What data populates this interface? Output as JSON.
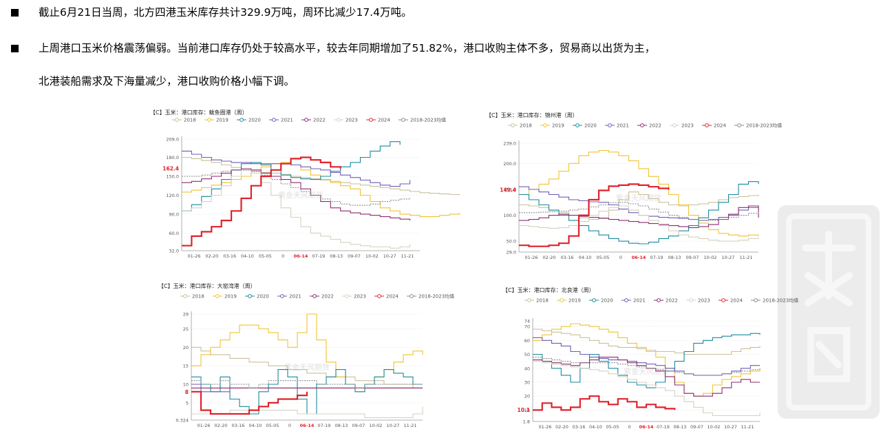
{
  "bullets": [
    {
      "text": "截止6月21日当周，北方四港玉米库存共计329.9万吨，周环比减少17.4万吨。"
    },
    {
      "text": "上周港口玉米价格震荡偏弱。当前港口库存仍处于较高水平，较去年同期增加了51.82%，港口收购主体不多，贸易商以出货为主，"
    },
    {
      "text": "北港装船需求及下海量减少，港口收购价格小幅下调。"
    }
  ],
  "watermark_text": "紫金天风期货",
  "series_legend": [
    {
      "name": "2018",
      "color": "#c9bf9a"
    },
    {
      "name": "2019",
      "color": "#f2c12e"
    },
    {
      "name": "2020",
      "color": "#17889a"
    },
    {
      "name": "2021",
      "color": "#6b5bb5"
    },
    {
      "name": "2022",
      "color": "#8b2a6a"
    },
    {
      "name": "2023",
      "color": "#d6d0c0"
    },
    {
      "name": "2024",
      "color": "#e0202a"
    },
    {
      "name": "2018-2023均值",
      "color": "#8a8a8a"
    }
  ],
  "x_ticks": [
    "01-26",
    "02-20",
    "03-16",
    "04-10",
    "05-05",
    "0",
    "06-14",
    "07-19",
    "08-13",
    "09-07",
    "10-02",
    "10-27",
    "11-21"
  ],
  "chart_data": [
    {
      "type": "line",
      "title": "【C】玉米：港口库存：鲅鱼圈港（周）",
      "y_ticks": [
        "209.0",
        "180.0",
        "150.0",
        "120.0",
        "90.0",
        "60.0",
        "32.0"
      ],
      "ylim": [
        32,
        209
      ],
      "last_label": "162.4",
      "last_value": 162.4,
      "series": [
        {
          "name": "2018",
          "values": [
            180,
            178,
            175,
            172,
            168,
            164,
            160,
            158,
            156,
            155,
            153,
            150,
            148,
            146,
            144,
            142,
            140,
            138,
            136,
            134,
            132,
            130,
            128,
            126,
            124,
            123,
            122,
            121,
            120
          ]
        },
        {
          "name": "2019",
          "values": [
            125,
            128,
            132,
            136,
            140,
            145,
            150,
            158,
            165,
            170,
            172,
            168,
            160,
            152,
            145,
            140,
            135,
            130,
            120,
            110,
            100,
            95,
            90,
            88,
            86,
            86,
            88,
            90,
            92
          ]
        },
        {
          "name": "2020",
          "values": [
            95,
            105,
            118,
            130,
            145,
            160,
            170,
            172,
            168,
            160,
            152,
            148,
            146,
            145,
            150,
            158,
            165,
            172,
            180,
            190,
            198,
            205,
            200
          ]
        },
        {
          "name": "2021",
          "values": [
            190,
            185,
            180,
            176,
            174,
            172,
            172,
            170,
            170,
            170,
            170,
            168,
            165,
            162,
            160,
            156,
            152,
            148,
            144,
            140,
            136,
            134,
            138,
            144
          ]
        },
        {
          "name": "2022",
          "values": [
            140,
            142,
            146,
            150,
            155,
            160,
            162,
            160,
            155,
            150,
            145,
            140,
            130,
            120,
            110,
            100,
            95,
            92,
            90,
            88,
            86,
            84,
            82,
            80
          ]
        },
        {
          "name": "2023",
          "values": [
            95,
            100,
            110,
            120,
            135,
            150,
            160,
            155,
            140,
            120,
            100,
            85,
            70,
            60,
            55,
            50,
            45,
            42,
            40,
            38,
            38,
            36,
            38,
            42
          ]
        },
        {
          "name": "2024",
          "values": [
            40,
            55,
            62,
            70,
            80,
            95,
            115,
            135,
            150,
            160,
            170,
            178,
            180,
            176,
            172,
            165,
            162.4
          ]
        },
        {
          "name": "2018-2023均值",
          "values": [
            150,
            150,
            152,
            155,
            158,
            160,
            160,
            158,
            152,
            145,
            138,
            132,
            126,
            120,
            114,
            110,
            106,
            104,
            104,
            106,
            110,
            112,
            114,
            116
          ]
        }
      ]
    },
    {
      "type": "line",
      "title": "【C】玉米：港口库存：锦州港（周）",
      "y_ticks": [
        "239.0",
        "200.0",
        "150.0",
        "100.0",
        "50.0",
        "29.0"
      ],
      "ylim": [
        29,
        239
      ],
      "last_label": "149.4",
      "last_value": 149.4,
      "series": [
        {
          "name": "2018",
          "values": [
            120,
            118,
            115,
            110,
            105,
            100,
            95,
            92,
            95,
            110,
            130,
            145,
            140,
            132,
            125,
            120,
            118,
            120,
            122,
            125,
            130,
            134,
            136,
            138,
            140
          ]
        },
        {
          "name": "2019",
          "values": [
            140,
            150,
            160,
            170,
            185,
            200,
            215,
            222,
            225,
            222,
            215,
            205,
            190,
            175,
            160,
            140,
            120,
            100,
            85,
            72,
            65,
            62,
            60,
            62,
            60
          ]
        },
        {
          "name": "2020",
          "values": [
            140,
            130,
            120,
            110,
            100,
            90,
            80,
            70,
            62,
            55,
            50,
            46,
            45,
            48,
            55,
            60,
            70,
            80,
            95,
            110,
            125,
            140,
            160,
            165,
            160
          ]
        },
        {
          "name": "2021",
          "values": [
            155,
            150,
            145,
            140,
            135,
            130,
            128,
            126,
            125,
            120,
            112,
            105,
            100,
            98,
            96,
            95,
            94,
            92,
            90,
            92,
            96,
            100,
            110,
            115,
            110
          ]
        },
        {
          "name": "2022",
          "values": [
            90,
            92,
            95,
            100,
            102,
            100,
            98,
            96,
            94,
            92,
            90,
            88,
            86,
            84,
            82,
            80,
            78,
            76,
            78,
            82,
            92,
            102,
            115,
            118,
            95
          ]
        },
        {
          "name": "2023",
          "values": [
            80,
            78,
            76,
            75,
            76,
            80,
            88,
            100,
            108,
            115,
            118,
            110,
            100,
            90,
            80,
            70,
            62,
            58,
            55,
            52,
            50,
            50,
            52,
            55,
            58
          ]
        },
        {
          "name": "2024",
          "values": [
            42,
            40,
            40,
            42,
            46,
            60,
            100,
            130,
            148,
            156,
            158,
            160,
            158,
            155,
            152,
            149.4
          ]
        },
        {
          "name": "2018-2023均值",
          "values": [
            105,
            105,
            106,
            107,
            108,
            110,
            112,
            116,
            120,
            124,
            125,
            122,
            118,
            112,
            106,
            100,
            96,
            92,
            90,
            90,
            92,
            96,
            100,
            104,
            106
          ]
        }
      ]
    },
    {
      "type": "line",
      "title": "【C】玉米：港口库存：大窑湾港（周）",
      "y_ticks": [
        "29",
        "25",
        "20",
        "15",
        "10",
        "5",
        "0.324"
      ],
      "ylim": [
        0.324,
        29
      ],
      "last_label": "8",
      "last_value": 8,
      "series": [
        {
          "name": "2018",
          "values": [
            20,
            19,
            18,
            18,
            17,
            17,
            16,
            16,
            15,
            15,
            14,
            14,
            13,
            13,
            12,
            12,
            12,
            11,
            11,
            11,
            10,
            10,
            10,
            9,
            9
          ]
        },
        {
          "name": "2019",
          "values": [
            15,
            18,
            20,
            22,
            24,
            26,
            26,
            25,
            24,
            22,
            20,
            24,
            29,
            22,
            16,
            12,
            10,
            8,
            10,
            12,
            14,
            16,
            18,
            19,
            18
          ]
        },
        {
          "name": "2020",
          "values": [
            12,
            10,
            8,
            12,
            6,
            4,
            2,
            8,
            10,
            14,
            12,
            6,
            2,
            10,
            12,
            14,
            10,
            8,
            10,
            12,
            14,
            13,
            12,
            10,
            10
          ]
        },
        {
          "name": "2021",
          "values": [
            10,
            8,
            8,
            8,
            9,
            9,
            9,
            9,
            9,
            9,
            9,
            9,
            9,
            9,
            9,
            9,
            9,
            9,
            9,
            9,
            9,
            9,
            9,
            9,
            9
          ]
        },
        {
          "name": "2022",
          "values": [
            9,
            9,
            9,
            9,
            9,
            9,
            9,
            9,
            9,
            9,
            9,
            9,
            9,
            9,
            9,
            9,
            9,
            9,
            9,
            9,
            9,
            9,
            9,
            9,
            9
          ]
        },
        {
          "name": "2023",
          "values": [
            2,
            2,
            2,
            2,
            3,
            3,
            3,
            3,
            3,
            3,
            3,
            2,
            2,
            2,
            2,
            2,
            2,
            2,
            1,
            1,
            1,
            1,
            1,
            2,
            4
          ]
        },
        {
          "name": "2024",
          "values": [
            8,
            3,
            2,
            2,
            2,
            2,
            3,
            4,
            5,
            6,
            6,
            7,
            8
          ]
        },
        {
          "name": "2018-2023均值",
          "values": [
            11,
            10,
            10,
            11,
            10,
            10,
            9,
            10,
            11,
            11,
            11,
            11,
            11,
            10,
            10,
            10,
            10,
            9,
            10,
            10,
            10,
            10,
            10,
            10,
            10
          ]
        }
      ]
    },
    {
      "type": "line",
      "title": "【C】玉米：港口库存：北良港（周）",
      "y_ticks": [
        "74",
        "70",
        "60",
        "50",
        "40",
        "30",
        "20",
        "10",
        "1.8"
      ],
      "ylim": [
        1.8,
        74
      ],
      "last_label": "10.1",
      "last_value": 10.1,
      "series": [
        {
          "name": "2018",
          "values": [
            68,
            67,
            66,
            65,
            64,
            62,
            60,
            58,
            56,
            55,
            55,
            54,
            53,
            52,
            52,
            51,
            50,
            50,
            50,
            50,
            50,
            52,
            54,
            55,
            56
          ]
        },
        {
          "name": "2019",
          "values": [
            60,
            64,
            68,
            70,
            72,
            71,
            70,
            68,
            66,
            62,
            58,
            55,
            52,
            48,
            40,
            30,
            22,
            20,
            22,
            28,
            32,
            34,
            36,
            38,
            40
          ]
        },
        {
          "name": "2020",
          "values": [
            50,
            45,
            40,
            35,
            30,
            40,
            50,
            45,
            40,
            35,
            30,
            28,
            26,
            30,
            38,
            45,
            52,
            58,
            60,
            62,
            63,
            64,
            64,
            65,
            64
          ]
        },
        {
          "name": "2021",
          "values": [
            62,
            60,
            58,
            56,
            52,
            50,
            48,
            47,
            46,
            46,
            45,
            44,
            43,
            42,
            40,
            38,
            36,
            35,
            35,
            35,
            36,
            38,
            40,
            42,
            42
          ]
        },
        {
          "name": "2022",
          "values": [
            46,
            45,
            44,
            43,
            42,
            44,
            46,
            48,
            48,
            46,
            44,
            42,
            40,
            38,
            34,
            28,
            22,
            20,
            20,
            22,
            26,
            30,
            32,
            30,
            30
          ]
        },
        {
          "name": "2023",
          "values": [
            45,
            44,
            43,
            42,
            41,
            40,
            39,
            38,
            36,
            34,
            32,
            30,
            28,
            26,
            24,
            20,
            16,
            12,
            8,
            6,
            6,
            6,
            6,
            6,
            8
          ]
        },
        {
          "name": "2024",
          "values": [
            10,
            15,
            12,
            10,
            12,
            18,
            20,
            16,
            14,
            18,
            16,
            12,
            14,
            12,
            11,
            10.1
          ]
        },
        {
          "name": "2018-2023均值",
          "values": [
            48,
            47,
            46,
            45,
            44,
            44,
            44,
            44,
            44,
            43,
            42,
            41,
            40,
            39,
            38,
            37,
            36,
            35,
            35,
            35,
            36,
            37,
            38,
            39,
            40
          ]
        }
      ]
    }
  ]
}
